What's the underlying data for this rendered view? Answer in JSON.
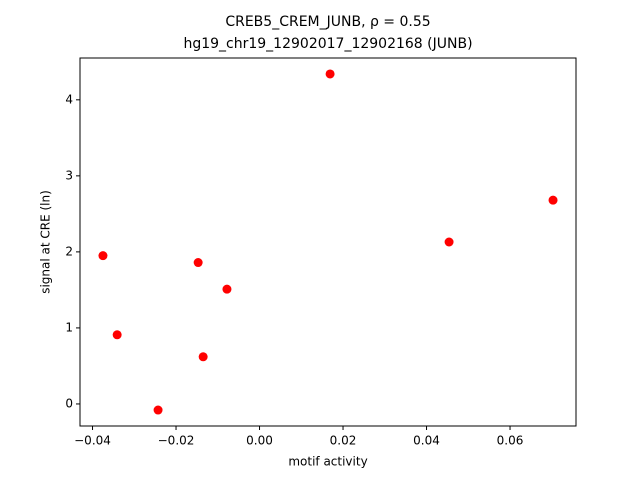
{
  "chart_data": {
    "type": "scatter",
    "title": [
      "CREB5_CREM_JUNB, ρ = 0.55",
      "hg19_chr19_12902017_12902168 (JUNB)"
    ],
    "xlabel": "motif activity",
    "ylabel": "signal at CRE (ln)",
    "color": "#ff0000",
    "x": [
      -0.0375,
      -0.0341,
      -0.0243,
      -0.0147,
      -0.0135,
      -0.0078,
      0.0169,
      0.0454,
      0.0703
    ],
    "values": [
      1.95,
      0.91,
      -0.08,
      1.86,
      0.62,
      1.51,
      4.34,
      2.13,
      2.68
    ],
    "xlim": [
      -0.043,
      0.0758
    ],
    "ylim": [
      -0.29,
      4.55
    ],
    "xticks": [
      {
        "value": -0.04,
        "label": "−0.04"
      },
      {
        "value": -0.02,
        "label": "−0.02"
      },
      {
        "value": 0,
        "label": "0.00"
      },
      0.02,
      0.04,
      0.06
    ],
    "yticks": [
      0,
      1,
      2,
      3,
      4
    ],
    "grid": false
  }
}
